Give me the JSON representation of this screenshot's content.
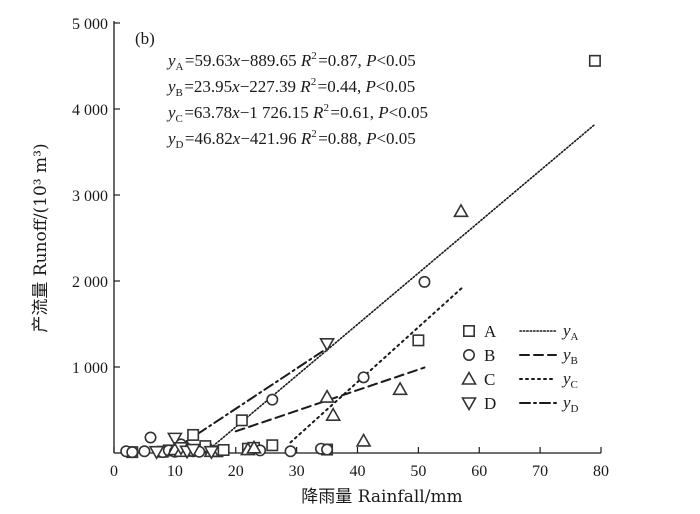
{
  "chart_data": {
    "type": "scatter",
    "panel_label": "(b)",
    "xlabel": "降雨量 Rainfall/mm",
    "ylabel": "产流量 Runoff/(10³ m³)",
    "xlim": [
      0,
      80
    ],
    "ylim": [
      0,
      5000
    ],
    "x_ticks": [
      0,
      10,
      20,
      30,
      40,
      50,
      60,
      70,
      80
    ],
    "y_ticks": [
      {
        "value": 1000,
        "label": "1 000"
      },
      {
        "value": 2000,
        "label": "2 000"
      },
      {
        "value": 3000,
        "label": "3 000"
      },
      {
        "value": 4000,
        "label": "4 000"
      },
      {
        "value": 5000,
        "label": "5 000"
      }
    ],
    "grid": false,
    "legend_position": "bottom-right",
    "equations": [
      "yA=59.63x−889.65  R²=0.87, P<0.05",
      "yB=23.95x−227.39  R²=0.44, P<0.05",
      "yC=63.78x−1 726.15  R²=0.61, P<0.05",
      "yD=46.82x−421.96  R²=0.88, P<0.05"
    ],
    "series": [
      {
        "name": "A",
        "marker": "square",
        "points": [
          [
            3,
            10
          ],
          [
            8,
            15
          ],
          [
            9,
            30
          ],
          [
            12,
            25
          ],
          [
            13,
            210
          ],
          [
            15,
            80
          ],
          [
            17,
            20
          ],
          [
            18,
            35
          ],
          [
            21,
            380
          ],
          [
            22,
            50
          ],
          [
            23,
            60
          ],
          [
            26,
            90
          ],
          [
            35,
            40
          ],
          [
            50,
            1310
          ],
          [
            79,
            4560
          ]
        ]
      },
      {
        "name": "B",
        "marker": "circle",
        "points": [
          [
            2,
            20
          ],
          [
            3,
            10
          ],
          [
            5,
            20
          ],
          [
            6,
            180
          ],
          [
            8,
            10
          ],
          [
            9,
            30
          ],
          [
            10,
            15
          ],
          [
            11,
            100
          ],
          [
            12,
            50
          ],
          [
            13,
            20
          ],
          [
            14,
            15
          ],
          [
            24,
            30
          ],
          [
            26,
            620
          ],
          [
            29,
            20
          ],
          [
            34,
            50
          ],
          [
            35,
            40
          ],
          [
            41,
            880
          ],
          [
            51,
            1990
          ]
        ]
      },
      {
        "name": "C",
        "marker": "triangle-up",
        "points": [
          [
            10,
            40
          ],
          [
            11,
            20
          ],
          [
            16,
            20
          ],
          [
            22,
            40
          ],
          [
            23,
            60
          ],
          [
            35,
            650
          ],
          [
            36,
            440
          ],
          [
            41,
            140
          ],
          [
            47,
            740
          ],
          [
            57,
            2810
          ]
        ]
      },
      {
        "name": "D",
        "marker": "triangle-down",
        "points": [
          [
            7,
            15
          ],
          [
            10,
            170
          ],
          [
            11,
            60
          ],
          [
            12,
            20
          ],
          [
            13,
            40
          ],
          [
            16,
            15
          ],
          [
            35,
            1270
          ]
        ]
      }
    ],
    "fit_lines": [
      {
        "series": "A",
        "label": "yA",
        "style": "dotted-fine",
        "slope": 59.63,
        "intercept": -889.65,
        "x_range": [
          15,
          79
        ]
      },
      {
        "series": "B",
        "label": "yB",
        "style": "dashed",
        "slope": 23.95,
        "intercept": -227.39,
        "x_range": [
          20,
          51
        ]
      },
      {
        "series": "C",
        "label": "yC",
        "style": "dotted",
        "slope": 63.78,
        "intercept": -1726.15,
        "x_range": [
          29,
          57.5
        ]
      },
      {
        "series": "D",
        "label": "yD",
        "style": "dash-dot",
        "slope": 46.82,
        "intercept": -421.96,
        "x_range": [
          11,
          35
        ]
      }
    ]
  }
}
